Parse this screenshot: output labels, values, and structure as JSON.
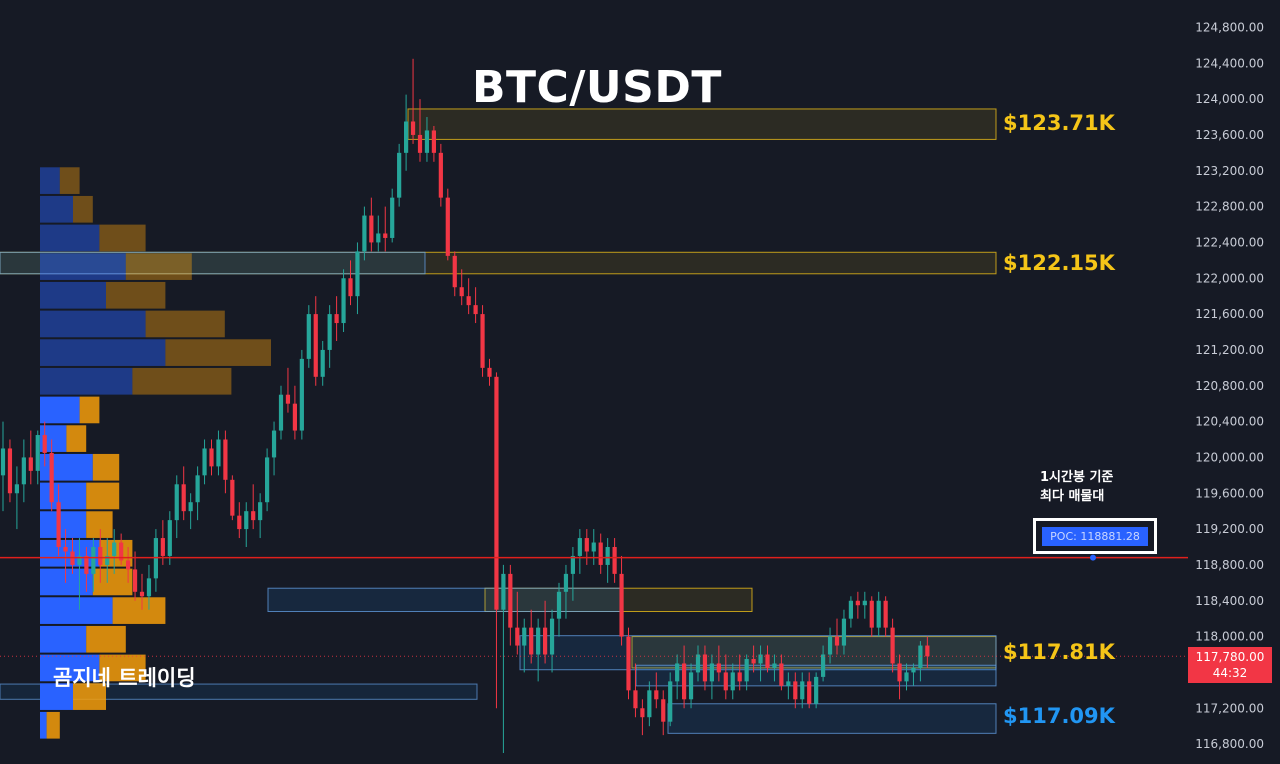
{
  "title": "BTC/USDT",
  "watermark": "곰지네 트레이딩",
  "annotation": {
    "line1": "1시간봉 기준",
    "line2": "최다 매물대"
  },
  "poc_label": "POC: 118881.28",
  "current_price": {
    "value": "117,780.00",
    "countdown": "44:32",
    "color": "#f23645"
  },
  "colors": {
    "background": "#161a25",
    "up": "#26a69a",
    "down": "#f23645",
    "zone_yellow": "#f5c518",
    "zone_blue": "#2196f3",
    "poc_line": "#e0201c",
    "profile_blue": "#2962ff",
    "profile_orange": "#f59e0b"
  },
  "chart_data": {
    "type": "candlestick",
    "symbol": "BTC/USDT",
    "y_axis": {
      "ylim": [
        116600,
        124950
      ],
      "ticks": [
        "124,800.00",
        "124,400.00",
        "124,000.00",
        "123,600.00",
        "123,200.00",
        "122,800.00",
        "122,400.00",
        "122,000.00",
        "121,600.00",
        "121,200.00",
        "120,800.00",
        "120,400.00",
        "120,000.00",
        "119,600.00",
        "119,200.00",
        "118,800.00",
        "118,400.00",
        "118,000.00",
        "117,600.00",
        "117,200.00",
        "116,800.00"
      ],
      "position": "right"
    },
    "poc": 118881.28,
    "levels": [
      {
        "label": "$123.71K",
        "value": 123710,
        "color": "#f5c518"
      },
      {
        "label": "$122.15K",
        "value": 122150,
        "color": "#f5c518"
      },
      {
        "label": "$117.81K",
        "value": 117810,
        "color": "#f5c518"
      },
      {
        "label": "$117.09K",
        "value": 117090,
        "color": "#2196f3"
      }
    ],
    "zones": [
      {
        "type": "supply",
        "low": 123550,
        "high": 123890
      },
      {
        "type": "supply",
        "low": 122050,
        "high": 122290
      },
      {
        "type": "supply",
        "low": 118280,
        "high": 118540
      },
      {
        "type": "supply",
        "low": 117650,
        "high": 118000
      },
      {
        "type": "demand",
        "low": 118280,
        "high": 118540
      },
      {
        "type": "demand",
        "low": 117630,
        "high": 118010
      },
      {
        "type": "demand",
        "low": 117450,
        "high": 117680
      },
      {
        "type": "demand",
        "low": 116920,
        "high": 117250
      },
      {
        "type": "demand",
        "low": 122050,
        "high": 122290
      }
    ],
    "volume_profile": {
      "bin_size": 320,
      "low": 116850,
      "rows": [
        [
          1,
          2
        ],
        [
          5,
          5
        ],
        [
          9,
          7
        ],
        [
          7,
          6
        ],
        [
          11,
          8
        ],
        [
          8,
          6
        ],
        [
          9,
          5
        ],
        [
          7,
          4
        ],
        [
          7,
          5
        ],
        [
          8,
          4
        ],
        [
          4,
          3
        ],
        [
          6,
          3
        ],
        [
          14,
          15
        ],
        [
          19,
          16
        ],
        [
          16,
          12
        ],
        [
          10,
          9
        ],
        [
          13,
          10
        ],
        [
          9,
          7
        ],
        [
          5,
          3
        ],
        [
          3,
          3
        ]
      ],
      "series": [
        "buy",
        "sell"
      ]
    },
    "candles": [
      [
        119800,
        120400,
        119400,
        120100
      ],
      [
        120100,
        120200,
        119500,
        119600
      ],
      [
        119600,
        119900,
        119200,
        119700
      ],
      [
        119700,
        120200,
        119500,
        120000
      ],
      [
        120000,
        120300,
        119700,
        119850
      ],
      [
        119850,
        120300,
        119700,
        120250
      ],
      [
        120250,
        120400,
        119900,
        120050
      ],
      [
        120050,
        120200,
        119400,
        119500
      ],
      [
        119500,
        119700,
        118900,
        119000
      ],
      [
        119000,
        119200,
        118600,
        118950
      ],
      [
        118950,
        119100,
        118700,
        118800
      ],
      [
        118800,
        119100,
        118300,
        118900
      ],
      [
        118900,
        119000,
        118500,
        118700
      ],
      [
        118700,
        119100,
        118500,
        119000
      ],
      [
        119000,
        119200,
        118600,
        118800
      ],
      [
        118800,
        119100,
        118600,
        118900
      ],
      [
        118900,
        119200,
        118700,
        119050
      ],
      [
        119050,
        119150,
        118800,
        118850
      ],
      [
        118850,
        119000,
        118600,
        118750
      ],
      [
        118750,
        118950,
        118400,
        118500
      ],
      [
        118500,
        118700,
        118300,
        118450
      ],
      [
        118450,
        118800,
        118300,
        118650
      ],
      [
        118650,
        119200,
        118500,
        119100
      ],
      [
        119100,
        119300,
        118800,
        118900
      ],
      [
        118900,
        119400,
        118800,
        119300
      ],
      [
        119300,
        119800,
        119100,
        119700
      ],
      [
        119700,
        119900,
        119300,
        119400
      ],
      [
        119400,
        119600,
        119200,
        119500
      ],
      [
        119500,
        119900,
        119300,
        119800
      ],
      [
        119800,
        120200,
        119700,
        120100
      ],
      [
        120100,
        120200,
        119800,
        119900
      ],
      [
        119900,
        120300,
        119800,
        120200
      ],
      [
        120200,
        120300,
        119600,
        119750
      ],
      [
        119750,
        119800,
        119300,
        119350
      ],
      [
        119350,
        119500,
        119100,
        119200
      ],
      [
        119200,
        119500,
        119000,
        119400
      ],
      [
        119400,
        119700,
        119200,
        119300
      ],
      [
        119300,
        119600,
        119100,
        119500
      ],
      [
        119500,
        120100,
        119400,
        120000
      ],
      [
        120000,
        120400,
        119800,
        120300
      ],
      [
        120300,
        120800,
        120200,
        120700
      ],
      [
        120700,
        121000,
        120500,
        120600
      ],
      [
        120600,
        120800,
        120200,
        120300
      ],
      [
        120300,
        121200,
        120200,
        121100
      ],
      [
        121100,
        121700,
        121000,
        121600
      ],
      [
        121600,
        121800,
        120800,
        120900
      ],
      [
        120900,
        121300,
        120800,
        121200
      ],
      [
        121200,
        121700,
        121000,
        121600
      ],
      [
        121600,
        121800,
        121300,
        121500
      ],
      [
        121500,
        122100,
        121400,
        122000
      ],
      [
        122000,
        122200,
        121700,
        121800
      ],
      [
        121800,
        122400,
        121600,
        122300
      ],
      [
        122300,
        122800,
        122200,
        122700
      ],
      [
        122700,
        122900,
        122300,
        122400
      ],
      [
        122400,
        122700,
        122300,
        122500
      ],
      [
        122500,
        122800,
        122300,
        122450
      ],
      [
        122450,
        123000,
        122400,
        122900
      ],
      [
        122900,
        123500,
        122800,
        123400
      ],
      [
        123400,
        124050,
        123200,
        123750
      ],
      [
        123750,
        124450,
        123500,
        123600
      ],
      [
        123600,
        124000,
        123300,
        123400
      ],
      [
        123400,
        123800,
        123300,
        123650
      ],
      [
        123650,
        123700,
        123300,
        123400
      ],
      [
        123400,
        123500,
        122800,
        122900
      ],
      [
        122900,
        123000,
        122200,
        122250
      ],
      [
        122250,
        122300,
        121800,
        121900
      ],
      [
        121900,
        122100,
        121700,
        121800
      ],
      [
        121800,
        122000,
        121600,
        121700
      ],
      [
        121700,
        121900,
        121500,
        121600
      ],
      [
        121600,
        121700,
        120900,
        121000
      ],
      [
        121000,
        121100,
        120800,
        120900
      ],
      [
        120900,
        120950,
        117200,
        118300
      ],
      [
        118300,
        118800,
        116700,
        118700
      ],
      [
        118700,
        118800,
        117900,
        118100
      ],
      [
        118100,
        118500,
        117800,
        117900
      ],
      [
        117900,
        118200,
        117600,
        118100
      ],
      [
        118100,
        118300,
        117700,
        117800
      ],
      [
        117800,
        118200,
        117500,
        118100
      ],
      [
        118100,
        118400,
        117700,
        117800
      ],
      [
        117800,
        118300,
        117600,
        118200
      ],
      [
        118200,
        118600,
        118000,
        118500
      ],
      [
        118500,
        118800,
        118200,
        118700
      ],
      [
        118700,
        119000,
        118400,
        118900
      ],
      [
        118900,
        119200,
        118700,
        119100
      ],
      [
        119100,
        119200,
        118800,
        118950
      ],
      [
        118950,
        119200,
        118800,
        119050
      ],
      [
        119050,
        119150,
        118700,
        118800
      ],
      [
        118800,
        119100,
        118600,
        119000
      ],
      [
        119000,
        119100,
        118600,
        118700
      ],
      [
        118700,
        118900,
        117900,
        118000
      ],
      [
        118000,
        118100,
        117300,
        117400
      ],
      [
        117400,
        117700,
        117100,
        117200
      ],
      [
        117200,
        117300,
        116900,
        117100
      ],
      [
        117100,
        117500,
        117000,
        117400
      ],
      [
        117400,
        117600,
        117200,
        117300
      ],
      [
        117300,
        117400,
        116900,
        117050
      ],
      [
        117050,
        117600,
        117000,
        117500
      ],
      [
        117500,
        117800,
        117300,
        117700
      ],
      [
        117700,
        117900,
        117200,
        117300
      ],
      [
        117300,
        117700,
        117200,
        117600
      ],
      [
        117600,
        117900,
        117500,
        117800
      ],
      [
        117800,
        117900,
        117400,
        117500
      ],
      [
        117500,
        117800,
        117300,
        117700
      ],
      [
        117700,
        117900,
        117500,
        117600
      ],
      [
        117600,
        117800,
        117300,
        117400
      ],
      [
        117400,
        117700,
        117300,
        117600
      ],
      [
        117600,
        117800,
        117400,
        117500
      ],
      [
        117500,
        117800,
        117400,
        117750
      ],
      [
        117750,
        117900,
        117600,
        117700
      ],
      [
        117700,
        117900,
        117500,
        117800
      ],
      [
        117800,
        117900,
        117600,
        117650
      ],
      [
        117650,
        117800,
        117500,
        117700
      ],
      [
        117700,
        117800,
        117400,
        117450
      ],
      [
        117450,
        117600,
        117300,
        117500
      ],
      [
        117500,
        117600,
        117200,
        117300
      ],
      [
        117300,
        117600,
        117200,
        117500
      ],
      [
        117500,
        117600,
        117200,
        117250
      ],
      [
        117250,
        117600,
        117200,
        117550
      ],
      [
        117550,
        117900,
        117500,
        117800
      ],
      [
        117800,
        118100,
        117700,
        118000
      ],
      [
        118000,
        118200,
        117800,
        117900
      ],
      [
        117900,
        118300,
        117800,
        118200
      ],
      [
        118200,
        118450,
        118100,
        118400
      ],
      [
        118400,
        118500,
        118200,
        118350
      ],
      [
        118350,
        118500,
        118200,
        118400
      ],
      [
        118400,
        118450,
        118000,
        118100
      ],
      [
        118100,
        118500,
        118000,
        118400
      ],
      [
        118400,
        118450,
        118000,
        118100
      ],
      [
        118100,
        118200,
        117600,
        117700
      ],
      [
        117700,
        117800,
        117300,
        117500
      ],
      [
        117500,
        117700,
        117400,
        117600
      ],
      [
        117600,
        117700,
        117450,
        117650
      ],
      [
        117650,
        117950,
        117500,
        117900
      ],
      [
        117900,
        118000,
        117650,
        117780
      ]
    ]
  }
}
